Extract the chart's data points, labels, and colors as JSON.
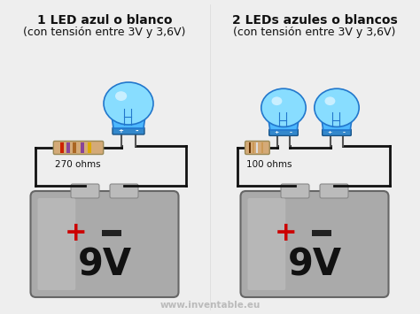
{
  "bg_color": "#eeeeee",
  "title1": "1 LED azul o blanco",
  "subtitle1": "(con tensión entre 3V y 3,6V)",
  "title2": "2 LEDs azules o blancos",
  "subtitle2": "(con tensión entre 3V y 3,6V)",
  "resistor1_label": "270 ohms",
  "resistor2_label": "100 ohms",
  "battery_label": "9V",
  "watermark": "www.inventable.eu",
  "led_body_color": "#4db8ff",
  "led_body_dark": "#2277cc",
  "led_lens_color": "#88ddff",
  "led_highlight": "#ccf0ff",
  "battery_body": "#aaaaaa",
  "battery_grad_light": "#cccccc",
  "battery_grad_dark": "#888888",
  "battery_edge": "#666666",
  "battery_contact": "#bbbbbb",
  "resistor_body_color": "#d4aa77",
  "resistor_stripe1": "#cc2200",
  "resistor_stripe2": "#884499",
  "resistor_stripe3": "#aa6622",
  "resistor_stripe4": "#ddaa00",
  "resistor_stripe5": "#dddddd",
  "wire_color": "#111111",
  "plus_color": "#cc0000",
  "minus_color": "#222222",
  "text_color": "#111111",
  "watermark_color": "#bbbbbb"
}
